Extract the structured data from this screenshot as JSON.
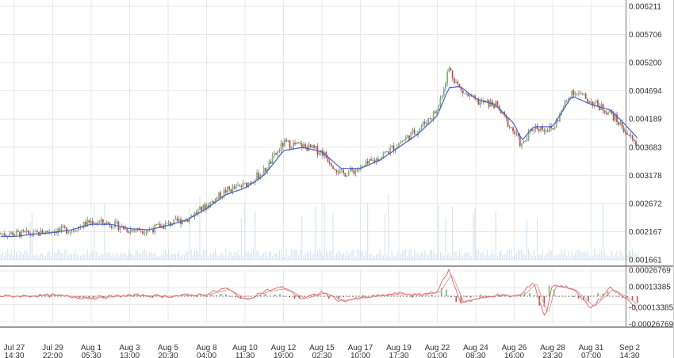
{
  "colors": {
    "grid": "#e8e8e8",
    "panel_border": "#7a7a7a",
    "ma_line": "#4a5fc8",
    "candle_up": "#7cb87a",
    "candle_down": "#c0504d",
    "wick": "#555555",
    "volume": "#cfe0ea",
    "osc_fast": "#e07070",
    "osc_slow": "#d9a0a0",
    "hist_up": "#6fbf6f",
    "hist_down": "#c05050"
  },
  "chart_data": {
    "type": "line",
    "price_axis_labels": [
      "0.006211",
      "0.005706",
      "0.005200",
      "0.004694",
      "0.004189",
      "0.003683",
      "0.003178",
      "0.002672",
      "0.002167",
      "0.001661"
    ],
    "price_axis_range": [
      0.001661,
      0.006211
    ],
    "oscillator_axis_labels": [
      "0.00026769",
      "0.00013385",
      "-0.00013385",
      "-0.00026769"
    ],
    "oscillator_axis_range": [
      -0.00026769,
      0.00026769
    ],
    "x_ticks": [
      {
        "top": "Jul 27",
        "bottom": "14:30"
      },
      {
        "top": "Jul 29",
        "bottom": "22:00"
      },
      {
        "top": "Aug 1",
        "bottom": "05:30"
      },
      {
        "top": "Aug 3",
        "bottom": "13:00"
      },
      {
        "top": "Aug 5",
        "bottom": "20:30"
      },
      {
        "top": "Aug 8",
        "bottom": "04:00"
      },
      {
        "top": "Aug 10",
        "bottom": "11:30"
      },
      {
        "top": "Aug 12",
        "bottom": "19:00"
      },
      {
        "top": "Aug 15",
        "bottom": "02:30"
      },
      {
        "top": "Aug 17",
        "bottom": "10:00"
      },
      {
        "top": "Aug 19",
        "bottom": "17:30"
      },
      {
        "top": "Aug 22",
        "bottom": "01:00"
      },
      {
        "top": "Aug 24",
        "bottom": "08:30"
      },
      {
        "top": "Aug 26",
        "bottom": "16:00"
      },
      {
        "top": "Aug 28",
        "bottom": "23:30"
      },
      {
        "top": "Aug 31",
        "bottom": "07:00"
      },
      {
        "top": "Sep 2",
        "bottom": "14:30"
      }
    ],
    "price_series": {
      "x_ticks": [
        0,
        0.5,
        1,
        1.5,
        2,
        2.5,
        3,
        3.5,
        4,
        4.5,
        5,
        5.5,
        6,
        6.5,
        7,
        7.5,
        8,
        8.5,
        9,
        9.5,
        10,
        10.5,
        11,
        11.3,
        11.6,
        12,
        12.5,
        13,
        13.2,
        13.5,
        14,
        14.5,
        15,
        15.5,
        15.8,
        16.2
      ],
      "close": [
        0.00213,
        0.00212,
        0.00219,
        0.0022,
        0.00235,
        0.00231,
        0.0022,
        0.0022,
        0.0023,
        0.0024,
        0.00263,
        0.0029,
        0.003,
        0.00325,
        0.00375,
        0.0037,
        0.0036,
        0.0032,
        0.0033,
        0.0035,
        0.00375,
        0.004,
        0.00435,
        0.0051,
        0.0047,
        0.0045,
        0.00445,
        0.00395,
        0.0037,
        0.00405,
        0.004,
        0.0047,
        0.0045,
        0.0043,
        0.00405,
        0.0037
      ],
      "moving_average": [
        0.00208,
        0.00212,
        0.00215,
        0.0022,
        0.0023,
        0.0023,
        0.00222,
        0.0022,
        0.00228,
        0.00238,
        0.00258,
        0.00283,
        0.00295,
        0.00318,
        0.00362,
        0.00368,
        0.0036,
        0.0033,
        0.0033,
        0.00345,
        0.00368,
        0.00392,
        0.00425,
        0.00475,
        0.00477,
        0.00455,
        0.00445,
        0.0041,
        0.0038,
        0.00405,
        0.00405,
        0.0046,
        0.00445,
        0.00435,
        0.00415,
        0.00385
      ]
    },
    "oscillator_series": {
      "x_ticks": [
        0,
        1,
        2,
        3,
        4,
        5,
        5.5,
        6,
        6.5,
        7,
        7.5,
        8,
        8.5,
        9,
        10,
        10.5,
        11,
        11.3,
        11.6,
        12,
        12.5,
        13,
        13.2,
        13.5,
        13.8,
        14,
        14.5,
        15,
        15.5,
        16,
        16.2
      ],
      "values": [
        0,
        1e-05,
        -2e-05,
        1e-05,
        0,
        2e-05,
        8e-05,
        -4e-05,
        5e-05,
        9e-05,
        -3e-05,
        4e-05,
        -5e-05,
        -2e-05,
        3e-05,
        1e-05,
        5e-05,
        0.00026,
        -6e-05,
        -3e-05,
        1e-05,
        0,
        2e-05,
        0.00015,
        -0.00022,
        0.00012,
        8e-05,
        -0.00012,
        8e-05,
        -5e-05,
        -0.00014
      ]
    }
  }
}
